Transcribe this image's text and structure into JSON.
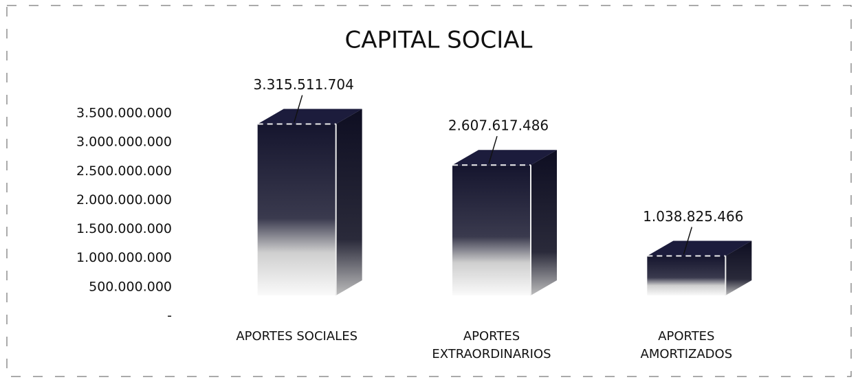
{
  "chart_data": {
    "type": "bar3d",
    "title": "CAPITAL SOCIAL",
    "categories": [
      "APORTES SOCIALES",
      "APORTES EXTRAORDINARIOS",
      "APORTES AMORTIZADOS"
    ],
    "values": [
      3315511704,
      2607617486,
      1038825466
    ],
    "value_labels": [
      "3.315.511.704",
      "2.607.617.486",
      "1.038.825.466"
    ],
    "color": "#1c1c3c",
    "ylim": [
      0,
      3500000000
    ],
    "yticks": [
      {
        "value": 0,
        "label": "-"
      },
      {
        "value": 500000000,
        "label": "500.000.000"
      },
      {
        "value": 1000000000,
        "label": "1.000.000.000"
      },
      {
        "value": 1500000000,
        "label": "1.500.000.000"
      },
      {
        "value": 2000000000,
        "label": "2.000.000.000"
      },
      {
        "value": 2500000000,
        "label": "2.500.000.000"
      },
      {
        "value": 3000000000,
        "label": "3.000.000.000"
      },
      {
        "value": 3500000000,
        "label": "3.500.000.000"
      }
    ]
  }
}
